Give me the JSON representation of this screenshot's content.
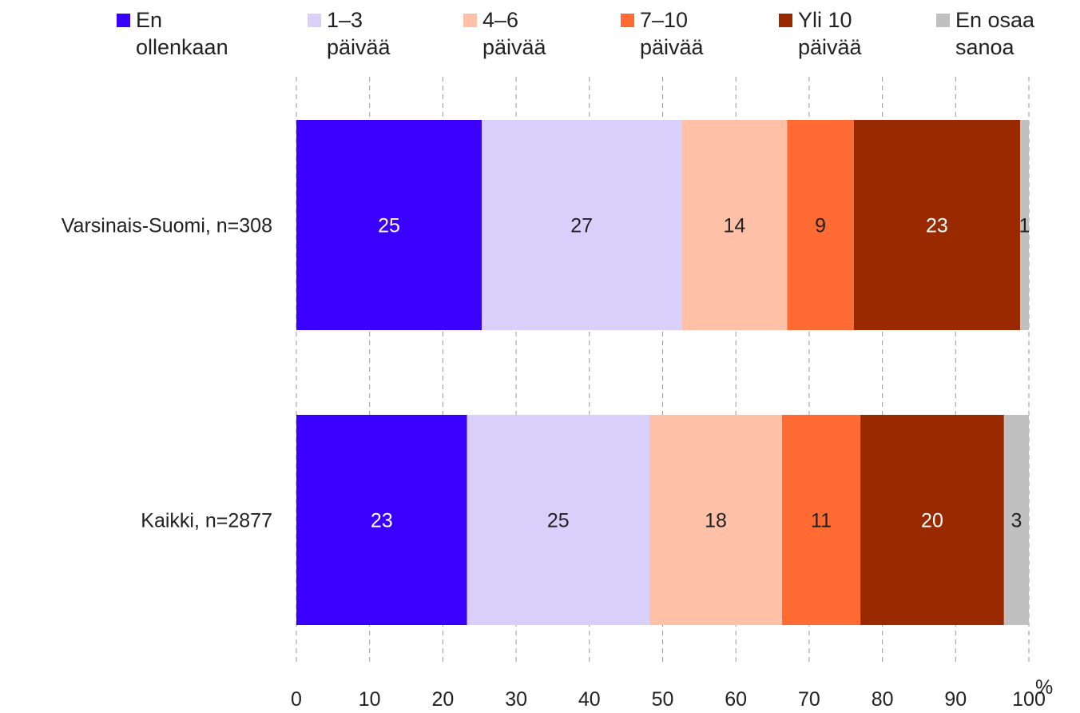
{
  "chart_data": {
    "type": "bar",
    "orientation": "horizontal",
    "stacked": true,
    "categories": [
      "Varsinais-Suomi, n=308",
      "Kaikki, n=2877"
    ],
    "series": [
      {
        "name": "En ollenkaan",
        "color": "#3a00ff",
        "values": [
          25.3,
          23.3
        ],
        "labels": [
          "25",
          "23"
        ]
      },
      {
        "name": "1–3 päivää",
        "color": "#d8cffb",
        "values": [
          27.3,
          24.9
        ],
        "labels": [
          "27",
          "25"
        ]
      },
      {
        "name": "4–6 päivää",
        "color": "#fec1a8",
        "values": [
          14.4,
          18.1
        ],
        "labels": [
          "14",
          "18"
        ]
      },
      {
        "name": "7–10 päivää",
        "color": "#ff6b33",
        "values": [
          9.1,
          10.7
        ],
        "labels": [
          "9",
          "11"
        ]
      },
      {
        "name": "Yli 10 päivää",
        "color": "#992a00",
        "values": [
          22.7,
          19.6
        ],
        "labels": [
          "23",
          "20"
        ]
      },
      {
        "name": "En osaa sanoa",
        "color": "#c0c0c0",
        "values": [
          1.2,
          3.4
        ],
        "labels": [
          "1",
          "3"
        ]
      }
    ],
    "xlim": [
      0,
      100
    ],
    "xticks": [
      "0",
      "10",
      "20",
      "30",
      "40",
      "50",
      "60",
      "70",
      "80",
      "90",
      "100"
    ],
    "xunit": "%",
    "grid": "vertical dashed",
    "legend": "top"
  },
  "legend_items": [
    {
      "line1": "En",
      "line2": "ollenkaan",
      "color": "#3a00ff"
    },
    {
      "line1": "1–3",
      "line2": "päivää",
      "color": "#d8cffb"
    },
    {
      "line1": "4–6",
      "line2": "päivää",
      "color": "#fec1a8"
    },
    {
      "line1": "7–10",
      "line2": "päivää",
      "color": "#ff6b33"
    },
    {
      "line1": "Yli 10",
      "line2": "päivää",
      "color": "#992a00"
    },
    {
      "line1": "En osaa",
      "line2": "sanoa",
      "color": "#c0c0c0"
    }
  ]
}
